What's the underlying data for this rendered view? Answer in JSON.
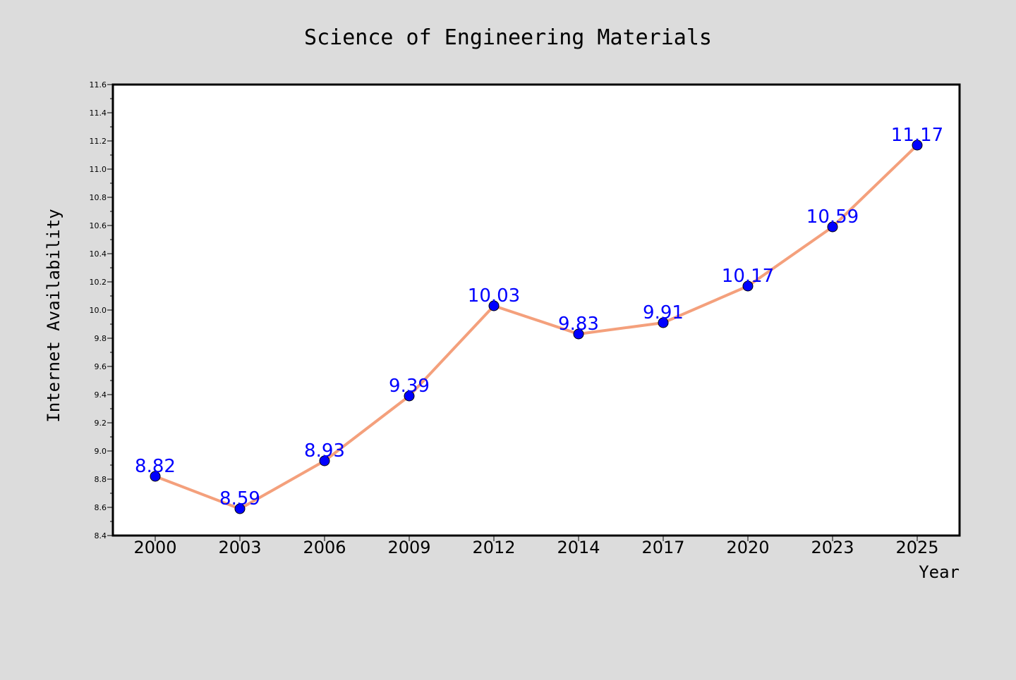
{
  "colors": {
    "background": "#dcdcdc",
    "plot_background": "#ffffff",
    "line": "#f4a07c",
    "marker": "#0000ff",
    "label": "#0000ff"
  },
  "chart_data": {
    "type": "line",
    "title": "Science of Engineering Materials",
    "xlabel": "Year",
    "ylabel": "Internet Availability",
    "categories": [
      "2000",
      "2003",
      "2006",
      "2009",
      "2012",
      "2014",
      "2017",
      "2020",
      "2023",
      "2025"
    ],
    "series": [
      {
        "values": [
          8.82,
          8.59,
          8.93,
          9.39,
          10.03,
          9.83,
          9.91,
          10.17,
          10.59,
          11.17
        ],
        "labels": [
          "8.82",
          "8.59",
          "8.93",
          "9.39",
          "10.03",
          "9.83",
          "9.91",
          "10.17",
          "10.59",
          "11.17"
        ]
      }
    ],
    "ylim": [
      8.4,
      11.6
    ],
    "yticks": [
      "8.4",
      "8.6",
      "8.8",
      "9.0",
      "9.2",
      "9.4",
      "9.6",
      "9.8",
      "10.0",
      "10.2",
      "10.4",
      "10.6",
      "10.8",
      "11.0",
      "11.2",
      "11.4",
      "11.6"
    ],
    "grid": false,
    "legend": "none"
  }
}
